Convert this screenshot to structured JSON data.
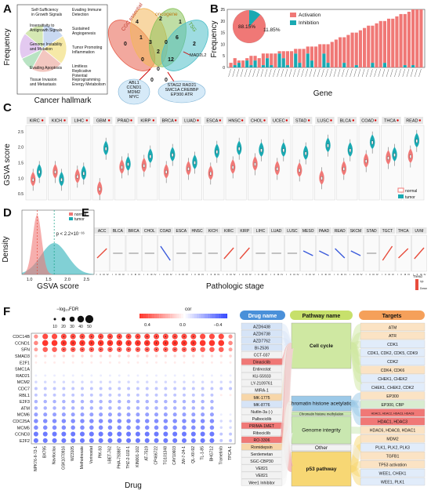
{
  "panels": {
    "a": "A",
    "b": "B",
    "c": "C",
    "d": "D",
    "e": "E",
    "f": "F"
  },
  "panel_a": {
    "ylabel": "Frequency",
    "xlabel": "Cancer hallmark",
    "hallmarks": [
      "Self-Sufficiency in Growth Signals",
      "Insensitivity to Antigrowth Signals",
      "Genome Instability and Mutation",
      "Evading Apoptosis",
      "Tissue Invasion and Metastasis",
      "Evading Immune Detection",
      "Sustained Angiogenesis",
      "Tumor Promoting Inflammation",
      "Limitless Replicative Potential",
      "Reprogramming Energy Metabolism"
    ],
    "venn_sets": [
      {
        "name": "CGC essential",
        "color": "#e8614e"
      },
      {
        "name": "oncogene",
        "color": "#f3b65a"
      },
      {
        "name": "TSG",
        "color": "#8ac35b"
      },
      {
        "name": "",
        "color": "#4fbfc9"
      }
    ],
    "venn_counts": [
      "0",
      "4",
      "2",
      "1",
      "2",
      "1",
      "3",
      "0",
      "6",
      "2",
      "0",
      "12",
      "0",
      "0",
      "0"
    ],
    "venn_side_label": "MAD2L2",
    "gene_box_left": "ABL1\nCCND1\nMDM2\nMYC",
    "gene_box_right": "STAG2 RAD21\nSMC1A CREBBP\nEP300 ATR"
  },
  "panel_b": {
    "ylabel": "Frequency",
    "xlabel": "Gene",
    "legend": [
      "Activation",
      "Inhibition"
    ],
    "colors": {
      "activation": "#f07876",
      "inhibition": "#19a9b2"
    },
    "pie": {
      "activation_pct": "88.15%",
      "inhibition_pct": "11.85%"
    },
    "ylim": [
      0,
      25
    ],
    "yticks": [
      "0",
      "5",
      "10",
      "15",
      "20",
      "25"
    ]
  },
  "panel_c": {
    "ylabel": "GSVA score",
    "cancers": [
      "KIRC",
      "KICH",
      "LIHC",
      "GBM",
      "PRAD",
      "KIRP",
      "BRCA",
      "LUAD",
      "ESCA",
      "HNSC",
      "CHOL",
      "UCEC",
      "STAD",
      "LUSC",
      "BLCA",
      "COAD",
      "THCA",
      "READ"
    ],
    "legend": [
      "normal",
      "tumor"
    ],
    "colors": {
      "normal": "#f07876",
      "tumor": "#19a9b2"
    },
    "yticks": [
      "0.5",
      "1.0",
      "1.5",
      "2.0",
      "2.5"
    ]
  },
  "panel_d": {
    "ylabel": "Density",
    "xlabel": "GSVA score",
    "xticks": [
      "1.0",
      "1.5",
      "2.0",
      "2.5"
    ],
    "legend": [
      "normal",
      "tumor"
    ],
    "pvalue": "p < 2.2×10⁻¹⁶"
  },
  "panel_e": {
    "xlabel": "Pathologic stage",
    "cancers": [
      "ACC",
      "BLCA",
      "BRCA",
      "CHOL",
      "COAD",
      "ESCA",
      "HNSC",
      "KICH",
      "KIRC",
      "KIRP",
      "LIHC",
      "LUAD",
      "LUSC",
      "MESO",
      "PAAD",
      "READ",
      "SKCM",
      "STAD",
      "TGCT",
      "THCA",
      "UVM"
    ],
    "trend_legend": {
      "title": "Trend",
      "hi": "Up",
      "lo": "Down"
    }
  },
  "panel_f": {
    "xlabel": "Drug",
    "size_legend_title": "−log₁₀FDR",
    "size_legend_values": [
      "10",
      "20",
      "30",
      "40",
      "50"
    ],
    "color_legend_title": "cor",
    "color_legend_values": [
      "0.4",
      "0.0",
      "−0.4"
    ],
    "genes": [
      "CDC14B",
      "CCND1",
      "SFN",
      "SMAD3",
      "E2F1",
      "SMC1A",
      "RAD21",
      "MCM2",
      "CDC7",
      "RBL1",
      "E2F3",
      "ATM",
      "MCM6",
      "CDC25A",
      "MCM5",
      "CCND3",
      "E2F2"
    ],
    "drugs": [
      "NPK76-II-72-1",
      "BX795",
      "Navitoclax",
      "GSK1070916",
      "WZ3105",
      "Methotrexate",
      "Vorinostat",
      "PIK-93",
      "I-BET-762",
      "PHA-793887",
      "THZ-2-102-1",
      "KIN001-102",
      "AT-7519",
      "CP466722",
      "TG101348",
      "CAY10603",
      "JW-7-24-1",
      "QL-XII-92",
      "TL-1-85",
      "BHG712",
      "Trametinib",
      "TPCA-1"
    ]
  },
  "sankey": {
    "drug_header": "Drug name",
    "pathway_header": "Pathway name",
    "targets_header": "Targets",
    "drugs": [
      "AZD6438",
      "AZD6738",
      "AZD7762",
      "BI-2536",
      "CCT-037",
      "Dinaciclib",
      "Entinostat",
      "KU-55933",
      "LY-2109761",
      "MIRA-1",
      "MK-1775",
      "MK-8776",
      "Nutlin-3a (-)",
      "Palbociclib",
      "PRIMA-1MET",
      "Ribociclib",
      "RO-3306",
      "Romidepsin",
      "Serdemetan",
      "SGC-CBP30",
      "VE821",
      "VE821",
      "Wee1 Inhibitor"
    ],
    "pathways": [
      "Cell cycle",
      "Chromatin histone acetylation",
      "Chromatin histone methylation",
      "Genome integrity",
      "Other",
      "p53 pathway"
    ],
    "targets": [
      "ATM",
      "ATR",
      "CDK1",
      "CDK1, CDK2, CDK5, CDK9",
      "CDK2",
      "CDK4, CDK6",
      "CHEK1, CHEK2",
      "CHEK1, CHEK2, CDK2",
      "EP300",
      "EP300, CBP",
      "HDAC1, HDAC2, HDAC3, HDAC8",
      "HDAC1, HDAC3",
      "HDAC6, HDAC8, HDAC1",
      "MDM2",
      "PLK1, PLK2, PLK3",
      "TGFB1",
      "TP53 activation",
      "WEE1, CHEK1",
      "WEE1, PLK1"
    ]
  },
  "chart_data": [
    {
      "type": "bar",
      "panel": "A",
      "ylabel": "Frequency",
      "xlabel": "Cancer hallmark",
      "categories": [
        "Self-Sufficiency in Growth Signals",
        "Insensitivity to Antigrowth Signals",
        "Genome Instability and Mutation",
        "Evading Apoptosis",
        "Tissue Invasion and Metastasis",
        "Evading Immune Detection",
        "Sustained Angiogenesis",
        "Tumor Promoting Inflammation",
        "Limitless Replicative Potential",
        "Reprogramming Energy Metabolism"
      ]
    },
    {
      "type": "bar",
      "panel": "B",
      "ylabel": "Frequency",
      "xlabel": "Gene",
      "ylim": [
        0,
        25
      ],
      "series": [
        {
          "name": "Activation",
          "values": [
            2,
            3,
            1,
            3,
            1,
            4,
            2,
            4,
            5,
            2,
            5,
            6,
            1,
            3,
            6,
            7,
            2,
            6,
            8,
            3,
            6,
            9,
            10,
            4,
            8,
            11,
            12,
            13,
            11,
            14,
            15,
            14,
            16,
            17,
            18,
            16,
            19,
            20,
            18,
            21,
            21,
            22,
            23,
            22,
            24,
            24,
            25,
            25
          ]
        },
        {
          "name": "Inhibition",
          "values": [
            0,
            1,
            2,
            0,
            3,
            1,
            3,
            0,
            1,
            4,
            1,
            0,
            6,
            4,
            1,
            0,
            6,
            2,
            0,
            6,
            3,
            0,
            0,
            6,
            2,
            0,
            0,
            0,
            2,
            0,
            0,
            1,
            0,
            0,
            0,
            2,
            0,
            0,
            2,
            0,
            0,
            0,
            0,
            1,
            0,
            1,
            0,
            0
          ]
        }
      ],
      "pie": {
        "Activation": 88.15,
        "Inhibition": 11.85
      }
    },
    {
      "type": "violin",
      "panel": "C",
      "ylabel": "GSVA score",
      "categories": [
        "KIRC",
        "KICH",
        "LIHC",
        "GBM",
        "PRAD",
        "KIRP",
        "BRCA",
        "LUAD",
        "ESCA",
        "HNSC",
        "CHOL",
        "UCEC",
        "STAD",
        "LUSC",
        "BLCA",
        "COAD",
        "THCA",
        "READ"
      ],
      "series": [
        {
          "name": "normal",
          "medians": [
            0.95,
            1.2,
            1.05,
            0.65,
            1.35,
            1.4,
            1.2,
            1.3,
            1.15,
            1.35,
            1.45,
            1.3,
            1.25,
            1.0,
            1.3,
            1.55,
            1.65,
            1.7
          ]
        },
        {
          "name": "tumor",
          "medians": [
            1.2,
            0.95,
            1.15,
            1.95,
            1.45,
            1.7,
            1.75,
            1.5,
            1.85,
            1.95,
            1.9,
            1.9,
            1.8,
            2.05,
            1.9,
            2.15,
            1.75,
            2.2
          ]
        }
      ]
    },
    {
      "type": "area",
      "panel": "D",
      "xlabel": "GSVA score",
      "ylabel": "Density",
      "series": [
        {
          "name": "normal",
          "peak": 1.2
        },
        {
          "name": "tumor",
          "peak": 1.65
        }
      ],
      "annotation": "p < 2.2×10⁻¹⁶"
    },
    {
      "type": "line",
      "panel": "E",
      "xlabel": "Pathologic stage",
      "categories": [
        "ACC",
        "BLCA",
        "BRCA",
        "CHOL",
        "COAD",
        "ESCA",
        "HNSC",
        "KICH",
        "KIRC",
        "KIRP",
        "LIHC",
        "LUAD",
        "LUSC",
        "MESO",
        "PAAD",
        "READ",
        "SKCM",
        "STAD",
        "TGCT",
        "THCA",
        "UVM"
      ],
      "trend": [
        0.6,
        0.0,
        0.0,
        0.0,
        -0.9,
        0.0,
        0.0,
        0.0,
        0.7,
        0.7,
        0.0,
        0.0,
        0.0,
        -0.3,
        -0.3,
        -0.6,
        -0.3,
        0.0,
        0.9,
        0.6,
        0.7
      ]
    },
    {
      "type": "scatter",
      "panel": "F",
      "xlabel": "Drug",
      "genes": [
        "CDC14B",
        "CCND1",
        "SFN",
        "SMAD3",
        "E2F1",
        "SMC1A",
        "RAD21",
        "MCM2",
        "CDC7",
        "RBL1",
        "E2F3",
        "ATM",
        "MCM6",
        "CDC25A",
        "MCM5",
        "CCND3",
        "E2F2"
      ],
      "drugs": [
        "NPK76-II-72-1",
        "BX795",
        "Navitoclax",
        "GSK1070916",
        "WZ3105",
        "Methotrexate",
        "Vorinostat",
        "PIK-93",
        "I-BET-762",
        "PHA-793887",
        "THZ-2-102-1",
        "KIN001-102",
        "AT-7519",
        "CP466722",
        "TG101348",
        "CAY10603",
        "JW-7-24-1",
        "QL-XII-92",
        "TL-1-85",
        "BHG712",
        "Trametinib",
        "TPCA-1"
      ],
      "gene_cor": [
        0.45,
        0.5,
        0.4,
        0.1,
        0.05,
        0.0,
        -0.05,
        -0.1,
        -0.15,
        -0.15,
        -0.2,
        -0.2,
        -0.25,
        -0.3,
        -0.3,
        -0.35,
        -0.35
      ]
    }
  ]
}
